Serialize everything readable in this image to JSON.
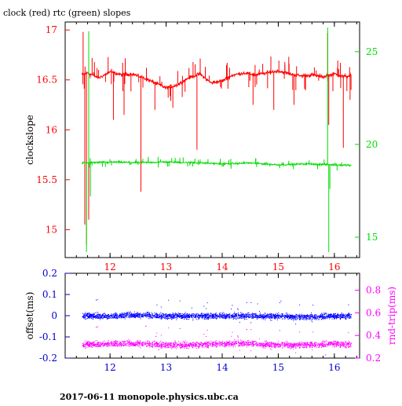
{
  "page": {
    "title": "clock (red) rtc (green) slopes",
    "footer": "2017-06-11 monopole.physics.ubc.ca"
  },
  "chart_data": [
    {
      "type": "line",
      "title": "clock (red) rtc (green) slopes",
      "xlim": [
        11.2,
        16.45
      ],
      "xticks": [
        12,
        13,
        14,
        15,
        16
      ],
      "ylabel": "clockslope",
      "ylim": [
        14.72,
        17.08
      ],
      "yticks": [
        15,
        15.5,
        16,
        16.5,
        17
      ],
      "ytick_labels": [
        "15",
        "15.5",
        "16",
        "16.5",
        "17"
      ],
      "y2lim": [
        13.9,
        26.6
      ],
      "y2ticks": [
        15,
        20,
        25
      ],
      "colors": {
        "left_axis": "#ff0000",
        "right_axis": "#00dd00",
        "frame": "#000000"
      },
      "series": [
        {
          "name": "clock",
          "color": "#ff0000",
          "axis": "left",
          "x": [
            11.5,
            11.6,
            11.8,
            12.0,
            12.2,
            12.4,
            12.6,
            12.8,
            13.0,
            13.2,
            13.4,
            13.6,
            13.8,
            14.0,
            14.2,
            14.4,
            14.6,
            14.8,
            15.0,
            15.2,
            15.4,
            15.6,
            15.8,
            16.0,
            16.2,
            16.3
          ],
          "y": [
            16.55,
            16.57,
            16.52,
            16.58,
            16.55,
            16.56,
            16.52,
            16.47,
            16.42,
            16.45,
            16.52,
            16.56,
            16.47,
            16.49,
            16.55,
            16.57,
            16.55,
            16.57,
            16.59,
            16.56,
            16.54,
            16.55,
            16.53,
            16.56,
            16.53,
            16.55
          ],
          "spikes": [
            {
              "x": 11.52,
              "y": 16.98
            },
            {
              "x": 11.55,
              "y": 15.05
            },
            {
              "x": 11.58,
              "y": 14.85
            },
            {
              "x": 11.62,
              "y": 15.1
            },
            {
              "x": 12.06,
              "y": 16.1
            },
            {
              "x": 12.25,
              "y": 16.15
            },
            {
              "x": 12.55,
              "y": 15.38
            },
            {
              "x": 12.8,
              "y": 16.2
            },
            {
              "x": 13.12,
              "y": 16.22
            },
            {
              "x": 13.55,
              "y": 15.8
            },
            {
              "x": 14.55,
              "y": 16.25
            },
            {
              "x": 14.92,
              "y": 16.2
            },
            {
              "x": 15.28,
              "y": 16.25
            },
            {
              "x": 15.88,
              "y": 16.97
            },
            {
              "x": 15.9,
              "y": 16.05
            },
            {
              "x": 16.16,
              "y": 15.82
            },
            {
              "x": 16.28,
              "y": 16.3
            }
          ]
        },
        {
          "name": "rtc",
          "color": "#00dd00",
          "axis": "right",
          "x": [
            11.5,
            12.0,
            12.5,
            13.0,
            13.5,
            14.0,
            14.5,
            15.0,
            15.5,
            16.0,
            16.3
          ],
          "y": [
            19.0,
            19.05,
            19.02,
            19.05,
            19.02,
            18.95,
            19.0,
            18.9,
            18.95,
            18.9,
            18.88
          ],
          "spikes": [
            {
              "x": 11.58,
              "y": 14.2
            },
            {
              "x": 11.62,
              "y": 26.1
            },
            {
              "x": 11.65,
              "y": 17.2
            },
            {
              "x": 15.88,
              "y": 26.3
            },
            {
              "x": 15.9,
              "y": 14.2
            },
            {
              "x": 15.92,
              "y": 17.6
            }
          ]
        }
      ]
    },
    {
      "type": "scatter",
      "xlim": [
        11.2,
        16.45
      ],
      "xticks": [
        12,
        13,
        14,
        15,
        16
      ],
      "ylabel": "offset(ms)",
      "ylim": [
        -0.2,
        0.2
      ],
      "yticks": [
        -0.2,
        -0.1,
        0,
        0.1,
        0.2
      ],
      "ytick_labels": [
        "-0.2",
        "-0.1",
        "0",
        "0.1",
        "0.2"
      ],
      "y2label": "rnd-trip(ms)",
      "y2lim": [
        0.2,
        0.95
      ],
      "y2ticks": [
        0.2,
        0.4,
        0.6,
        0.8
      ],
      "y2tick_labels": [
        "0.2",
        "0.4",
        "0.6",
        "0.8"
      ],
      "colors": {
        "left_axis": "#0000cc",
        "right_axis": "#ff00ff",
        "frame": "#000000"
      },
      "series": [
        {
          "name": "offset",
          "color": "#0000ff",
          "axis": "left",
          "x": [
            11.5,
            12.0,
            12.5,
            13.0,
            13.5,
            14.0,
            14.5,
            15.0,
            15.5,
            16.0,
            16.3
          ],
          "y": [
            0.0,
            0.0,
            0.005,
            0.0,
            0.0,
            0.0,
            0.0,
            0.0,
            -0.005,
            0.0,
            0.0
          ],
          "spread": 0.02
        },
        {
          "name": "rnd-trip",
          "color": "#ff00ff",
          "axis": "right",
          "x": [
            11.5,
            12.0,
            12.5,
            13.0,
            13.5,
            14.0,
            14.5,
            15.0,
            15.5,
            16.0,
            16.3
          ],
          "y": [
            0.32,
            0.33,
            0.33,
            0.32,
            0.32,
            0.33,
            0.33,
            0.32,
            0.32,
            0.33,
            0.32
          ],
          "spread": 0.04
        }
      ]
    }
  ]
}
